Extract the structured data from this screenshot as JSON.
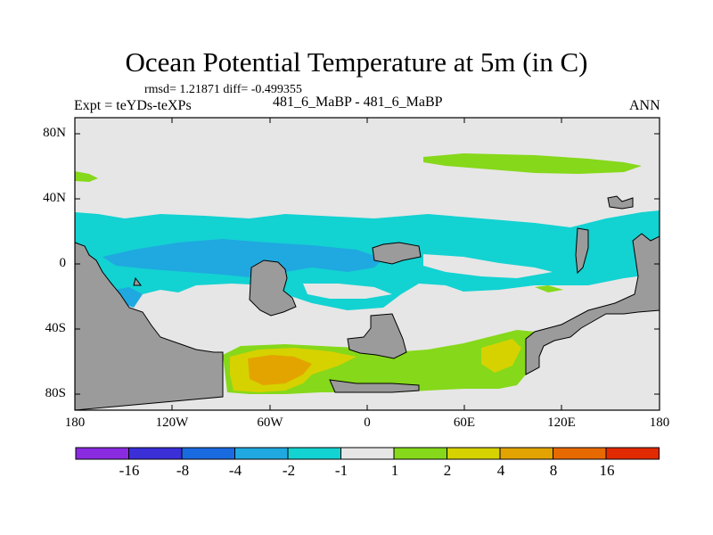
{
  "title": "Ocean Potential Temperature at 5m (in C)",
  "stats_line": "rmsd= 1.21871  diff= -0.499355",
  "left_label": "Expt = teYDs-teXPs",
  "center_label": "481_6_MaBP - 481_6_MaBP",
  "right_label": "ANN",
  "y_axis": {
    "tick_labels": [
      "80N",
      "40N",
      "0",
      "40S",
      "80S"
    ],
    "range": [
      -90,
      90
    ]
  },
  "x_axis": {
    "tick_labels": [
      "180",
      "120W",
      "60W",
      "0",
      "60E",
      "120E",
      "180"
    ],
    "range": [
      -180,
      180
    ]
  },
  "colorbar": {
    "boundaries": [
      "-16",
      "-8",
      "-4",
      "-2",
      "-1",
      "1",
      "2",
      "4",
      "8",
      "16"
    ],
    "colors": [
      "#8a2be2",
      "#3b2fd8",
      "#1a6be0",
      "#1fa9e0",
      "#13d2d2",
      "#e6e6e6",
      "#86d81a",
      "#d6d200",
      "#e3a400",
      "#e66a00",
      "#e22a00"
    ]
  },
  "colors": {
    "land": "#9b9b9b",
    "neutral": "#e6e6e6",
    "cyan": "#13d2d2",
    "sky": "#1fa9e0",
    "green": "#86d81a",
    "yellow": "#d6d200",
    "orange": "#e3a400"
  }
}
